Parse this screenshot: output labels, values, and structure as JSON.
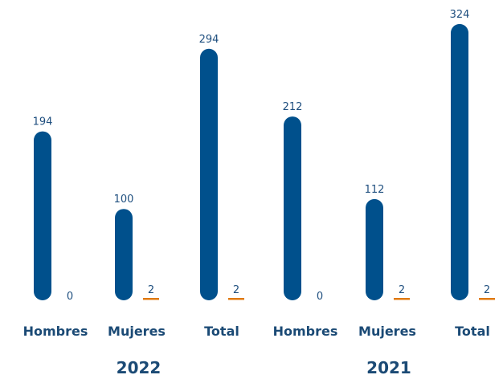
{
  "chart_data": {
    "type": "bar",
    "colors": {
      "series1": "#00508c",
      "series2": "#e07a10"
    },
    "groups": [
      {
        "year": "2022",
        "categories": [
          {
            "label": "Hombres",
            "values": [
              194,
              0
            ],
            "labels": [
              "194",
              "0"
            ]
          },
          {
            "label": "Mujeres",
            "values": [
              100,
              2
            ],
            "labels": [
              "100",
              "2"
            ]
          },
          {
            "label": "Total",
            "values": [
              294,
              2
            ],
            "labels": [
              "294",
              "2"
            ]
          }
        ]
      },
      {
        "year": "2021",
        "categories": [
          {
            "label": "Hombres",
            "values": [
              212,
              0
            ],
            "labels": [
              "212",
              "0"
            ]
          },
          {
            "label": "Mujeres",
            "values": [
              112,
              2
            ],
            "labels": [
              "112",
              "2"
            ]
          },
          {
            "label": "Total",
            "values": [
              324,
              2
            ],
            "labels": [
              "324",
              "2"
            ]
          }
        ]
      }
    ]
  }
}
